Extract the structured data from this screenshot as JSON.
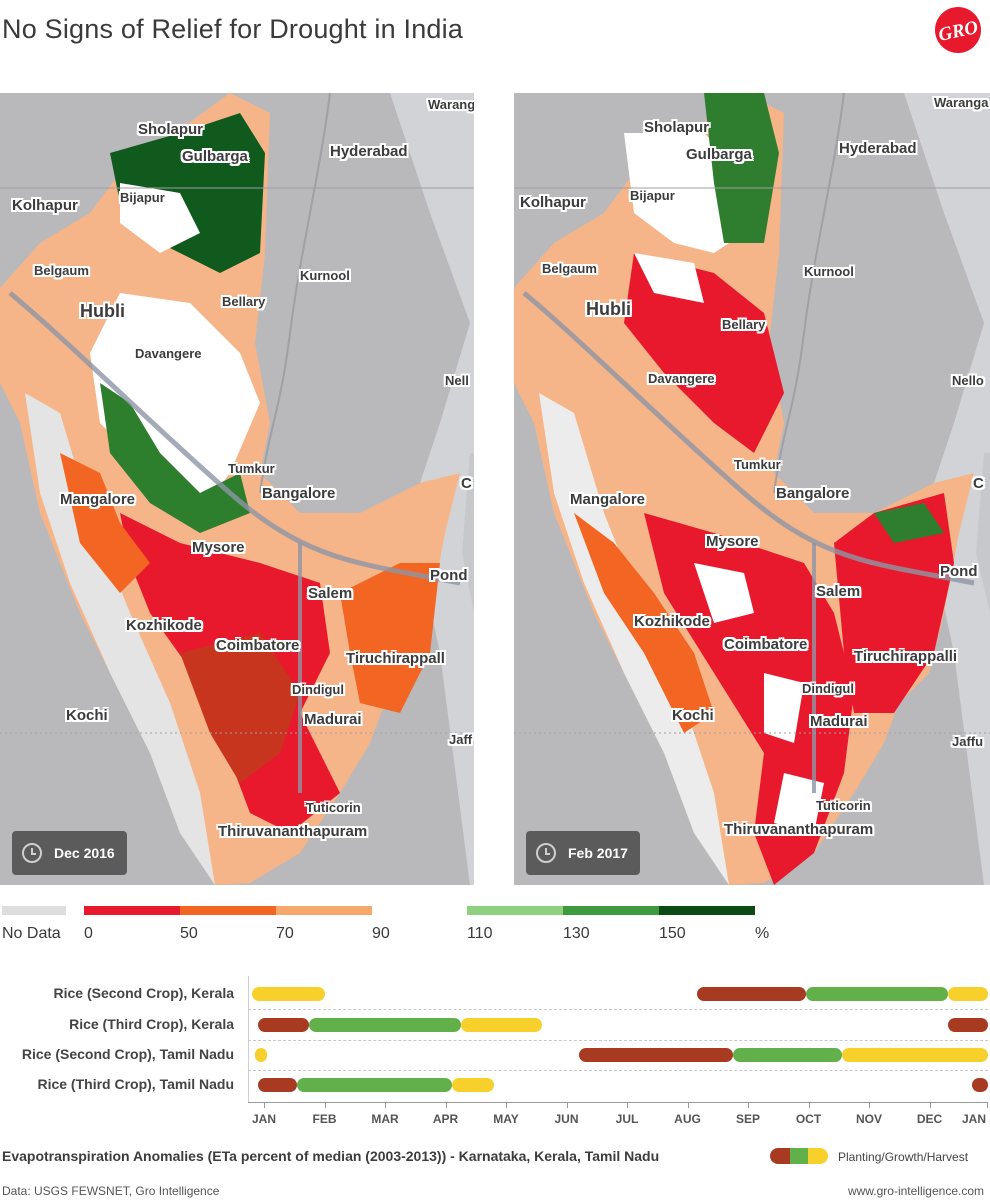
{
  "header": {
    "title": "No Signs of Relief for Drought in India",
    "logo_text": "GRO"
  },
  "maps": [
    {
      "id": "left",
      "date": "Dec 2016",
      "cities": [
        "Sholapur",
        "Gulbarga",
        "Hyderabad",
        "Warangal",
        "Kolhapur",
        "Bijapur",
        "Belgaum",
        "Kurnool",
        "Hubli",
        "Bellary",
        "Davangere",
        "Nellore",
        "Tumkur",
        "Bangalore",
        "Mangalore",
        "Mysore",
        "Chennai",
        "Pondicherry",
        "Salem",
        "Kozhikode",
        "Coimbatore",
        "Tiruchirappalli",
        "Dindigul",
        "Kochi",
        "Madurai",
        "Jaffna",
        "Tuticorin",
        "Thiruvananthapuram"
      ]
    },
    {
      "id": "right",
      "date": "Feb 2017",
      "cities": [
        "Sholapur",
        "Gulbarga",
        "Hyderabad",
        "Warangal",
        "Kolhapur",
        "Bijapur",
        "Belgaum",
        "Kurnool",
        "Hubli",
        "Bellary",
        "Davangere",
        "Nellore",
        "Tumkur",
        "Bangalore",
        "Mangalore",
        "Mysore",
        "Chennai",
        "Pondicherry",
        "Salem",
        "Kozhikode",
        "Coimbatore",
        "Tiruchirappalli",
        "Dindigul",
        "Kochi",
        "Madurai",
        "Jaffna",
        "Tuticorin",
        "Thiruvananthapuram"
      ]
    }
  ],
  "city_display": {
    "Sholapur": "Sholapur",
    "Gulbarga": "Gulbarga",
    "Hyderabad": "Hyderabad",
    "Warangal": "Warang",
    "Warangal_r": "Waranga",
    "Kolhapur": "Kolhapur",
    "Bijapur": "Bijapur",
    "Belgaum": "Belgaum",
    "Kurnool": "Kurnool",
    "Hubli": "Hubli",
    "Bellary": "Bellary",
    "Davangere": "Davangere",
    "Nellore": "Nell",
    "Nellore_r": "Nello",
    "Tumkur": "Tumkur",
    "Bangalore": "Bangalore",
    "Mangalore": "Mangalore",
    "Mysore": "Mysore",
    "Chennai": "C",
    "Chennai_r": "C",
    "Pondicherry": "Pond",
    "Salem": "Salem",
    "Kozhikode": "Kozhikode",
    "Coimbatore": "Coimbatore",
    "Tiruchirappalli": "Tiruchirappall",
    "Tiruchirappalli_r": "Tiruchirappalli",
    "Dindigul": "Dindigul",
    "Kochi": "Kochi",
    "Madurai": "Madurai",
    "Jaffna": "Jaff",
    "Jaffna_r": "Jaffu",
    "Tuticorin": "Tuticorin",
    "Thiruvananthapuram": "Thiruvananthapuram"
  },
  "legend": {
    "colors": {
      "no_data": "#dedede",
      "c0_50": "#e8192c",
      "c50_70": "#f26522",
      "c70_90": "#f7a86a",
      "c110_130": "#8fcf80",
      "c130_150": "#3d9a3d",
      "c150_plus": "#0b4a14"
    },
    "labels": [
      "No Data",
      "0",
      "50",
      "70",
      "90",
      "110",
      "130",
      "150",
      "%"
    ]
  },
  "calendar": {
    "months": [
      "JAN",
      "FEB",
      "MAR",
      "APR",
      "MAY",
      "JUN",
      "JUL",
      "AUG",
      "SEP",
      "OCT",
      "NOV",
      "DEC",
      "JAN"
    ],
    "stage_colors": {
      "planting": "#a83a22",
      "growth": "#62b04a",
      "harvest": "#f7d02c"
    },
    "rows": [
      {
        "label": "Rice (Second Crop), Kerala",
        "segments": [
          {
            "stage": "harvest",
            "start": 0.0,
            "end": 1.2
          },
          {
            "stage": "planting",
            "start": 7.35,
            "end": 9.15
          },
          {
            "stage": "growth",
            "start": 9.15,
            "end": 11.5
          },
          {
            "stage": "harvest",
            "start": 11.5,
            "end": 12.2
          }
        ]
      },
      {
        "label": "Rice (Third Crop), Kerala",
        "segments": [
          {
            "stage": "planting",
            "start": 0.1,
            "end": 0.95
          },
          {
            "stage": "growth",
            "start": 0.95,
            "end": 3.45
          },
          {
            "stage": "harvest",
            "start": 3.45,
            "end": 4.8
          },
          {
            "stage": "planting",
            "start": 11.5,
            "end": 12.2
          }
        ]
      },
      {
        "label": "Rice (Second Crop), Tamil Nadu",
        "segments": [
          {
            "stage": "harvest",
            "start": 0.05,
            "end": 0.25
          },
          {
            "stage": "planting",
            "start": 5.4,
            "end": 7.95
          },
          {
            "stage": "growth",
            "start": 7.95,
            "end": 9.75
          },
          {
            "stage": "harvest",
            "start": 9.75,
            "end": 12.2
          }
        ]
      },
      {
        "label": "Rice (Third Crop), Tamil Nadu",
        "segments": [
          {
            "stage": "planting",
            "start": 0.1,
            "end": 0.75
          },
          {
            "stage": "growth",
            "start": 0.75,
            "end": 3.3
          },
          {
            "stage": "harvest",
            "start": 3.3,
            "end": 4.0
          },
          {
            "stage": "planting",
            "start": 11.9,
            "end": 12.2
          }
        ]
      }
    ]
  },
  "caption": "Evapotranspiration Anomalies (ETa percent of median (2003-2013)) - Karnataka, Kerala, Tamil Nadu",
  "key_label": "Planting/Growth/Harvest",
  "footer": {
    "source": "Data: USGS FEWSNET, Gro Intelligence",
    "website": "www.gro-intelligence.com"
  }
}
